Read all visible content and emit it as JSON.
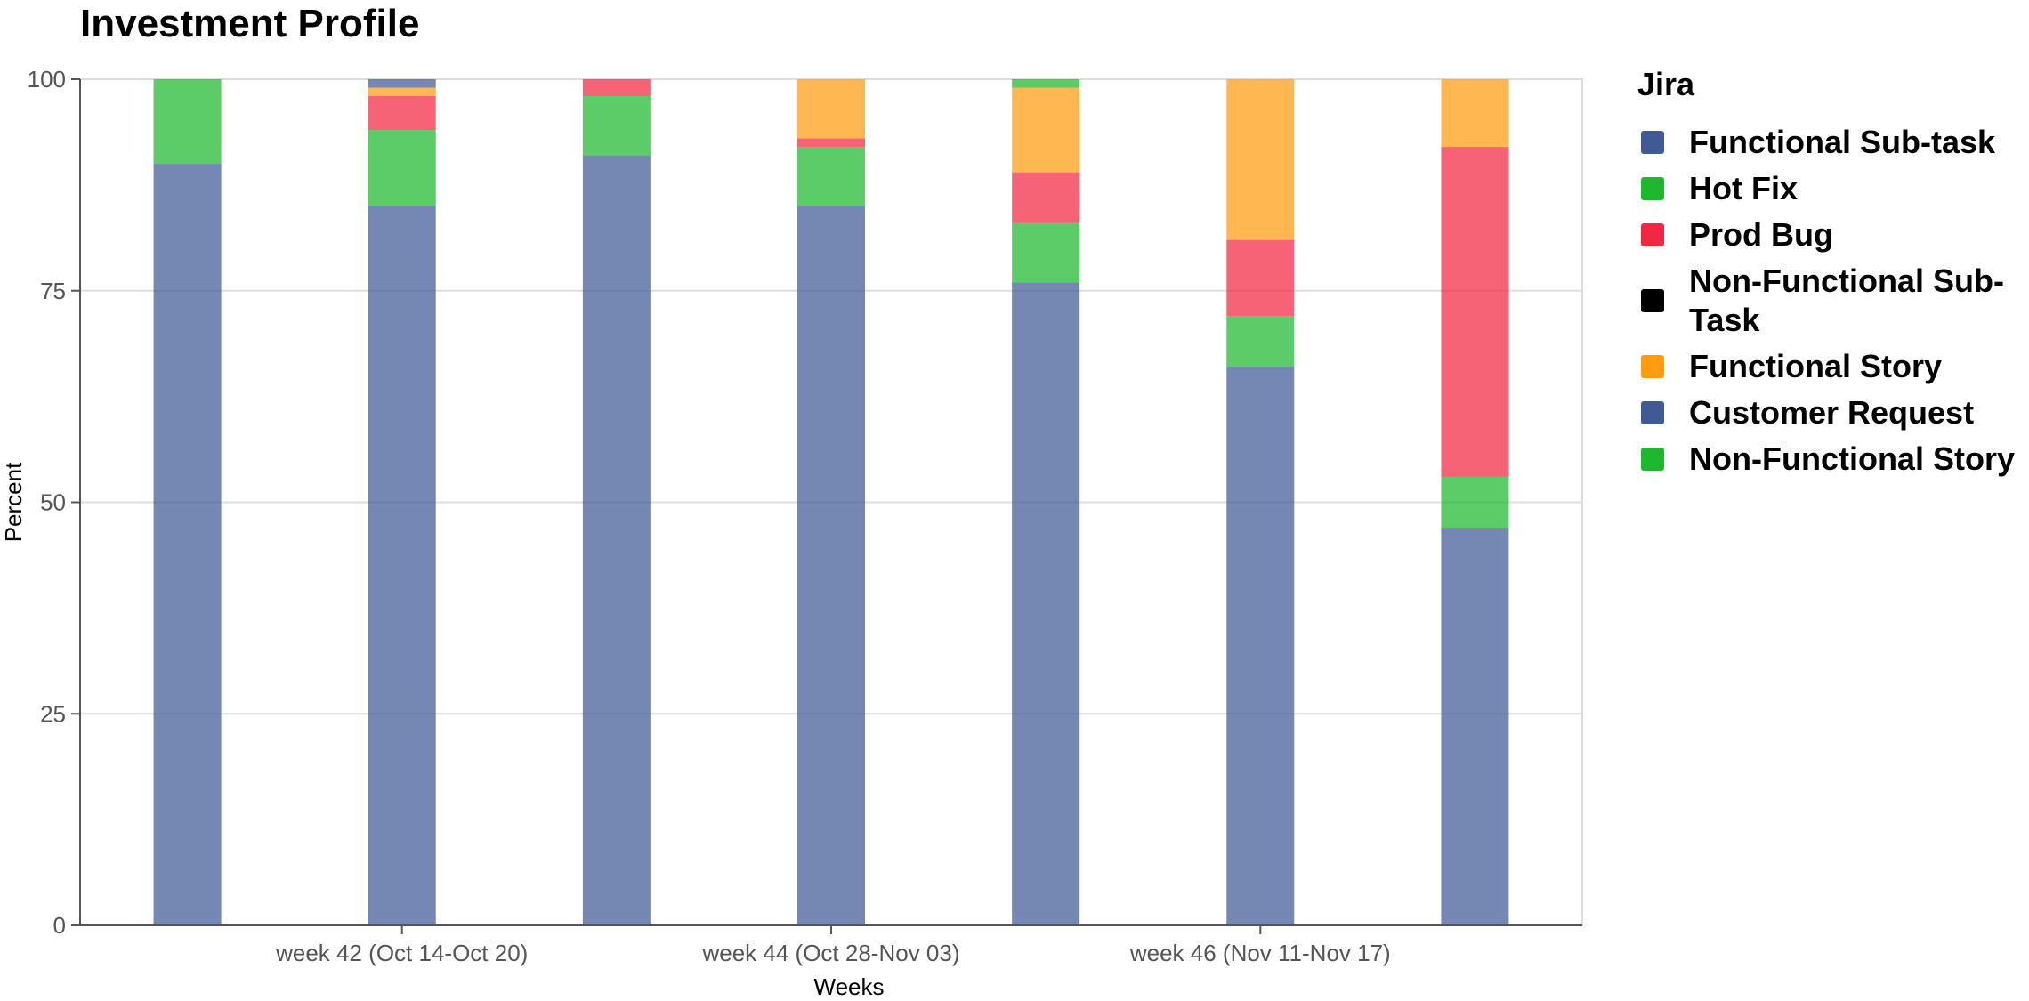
{
  "chart_data": {
    "type": "bar",
    "stacked": true,
    "title": "Investment Profile",
    "xlabel": "Weeks",
    "ylabel": "Percent",
    "ylim": [
      0,
      100
    ],
    "yticks": [
      "0",
      "25",
      "50",
      "75",
      "100"
    ],
    "xtick_labels": [
      "week 42 (Oct 14-Oct 20)",
      "week 44 (Oct 28-Nov 03)",
      "week 46 (Nov 11-Nov 17)"
    ],
    "grid": true,
    "legend_title": "Jira",
    "legend_position": "right",
    "legend": [
      {
        "name": "Functional Sub-task",
        "color": "#3f5a95"
      },
      {
        "name": "Hot Fix",
        "color": "#1db82e"
      },
      {
        "name": "Prod Bug",
        "color": "#f22742"
      },
      {
        "name": "Non-Functional Sub-Task",
        "color": "#000000"
      },
      {
        "name": "Functional Story",
        "color": "#ff9b0f"
      },
      {
        "name": "Customer Request",
        "color": "#3f5a95"
      },
      {
        "name": "Non-Functional Story",
        "color": "#1db82e"
      }
    ],
    "bar_count": 7,
    "stack_order": [
      "Functional Sub-task",
      "Hot Fix",
      "Prod Bug",
      "Functional Story",
      "Customer Request",
      "Non-Functional Story"
    ],
    "series": [
      {
        "name": "Functional Sub-task",
        "values": [
          90,
          85,
          91,
          85,
          76,
          66,
          47
        ]
      },
      {
        "name": "Hot Fix",
        "values": [
          10,
          9,
          7,
          7,
          7,
          6,
          6
        ]
      },
      {
        "name": "Prod Bug",
        "values": [
          0,
          4,
          2,
          1,
          6,
          9,
          39
        ]
      },
      {
        "name": "Functional Story",
        "values": [
          0,
          1,
          0,
          7,
          10,
          19,
          8
        ]
      },
      {
        "name": "Customer Request",
        "values": [
          0,
          1,
          0,
          0,
          0,
          0,
          0
        ]
      },
      {
        "name": "Non-Functional Story",
        "values": [
          0,
          0,
          0,
          0,
          1,
          0,
          0
        ]
      }
    ]
  }
}
